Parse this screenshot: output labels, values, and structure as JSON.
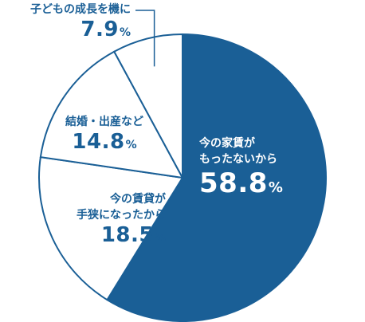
{
  "chart_data": {
    "type": "pie",
    "unit": "%",
    "slices": [
      {
        "label": "今の家賃がもったないから",
        "label_lines": [
          "今の家賃が",
          "もったないから"
        ],
        "value": 58.8,
        "value_text": "58.8"
      },
      {
        "label": "今の賃貸が手狭になったから",
        "label_lines": [
          "今の賃貸が",
          "手狭になったから"
        ],
        "value": 18.5,
        "value_text": "18.5"
      },
      {
        "label": "結婚・出産など",
        "label_lines": [
          "結婚・出産など"
        ],
        "value": 14.8,
        "value_text": "14.8"
      },
      {
        "label": "子どもの成長を機に",
        "label_lines": [
          "子どもの成長を機に"
        ],
        "value": 7.9,
        "value_text": "7.9"
      }
    ],
    "colors": {
      "main": "#1a5f96",
      "other": "#ffffff",
      "border": "#1a5f96"
    }
  }
}
